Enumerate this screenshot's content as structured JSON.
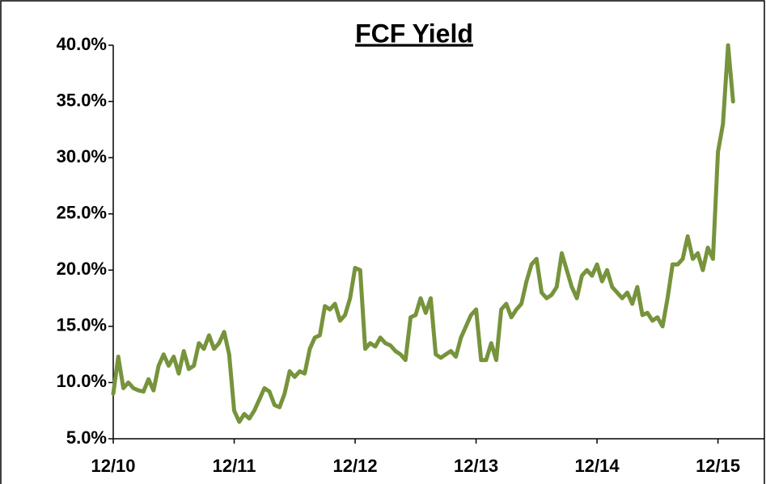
{
  "chart_data": {
    "type": "line",
    "title": "FCF Yield",
    "categories": [
      "12/10",
      null,
      null,
      null,
      null,
      null,
      null,
      null,
      null,
      null,
      null,
      null,
      null,
      null,
      null,
      null,
      null,
      null,
      null,
      null,
      null,
      null,
      null,
      null,
      "12/11",
      null,
      null,
      null,
      null,
      null,
      null,
      null,
      null,
      null,
      null,
      null,
      null,
      null,
      null,
      null,
      null,
      null,
      null,
      null,
      null,
      null,
      null,
      null,
      "12/12",
      null,
      null,
      null,
      null,
      null,
      null,
      null,
      null,
      null,
      null,
      null,
      null,
      null,
      null,
      null,
      null,
      null,
      null,
      null,
      null,
      null,
      null,
      null,
      "12/13",
      null,
      null,
      null,
      null,
      null,
      null,
      null,
      null,
      null,
      null,
      null,
      null,
      null,
      null,
      null,
      null,
      null,
      null,
      null,
      null,
      null,
      null,
      null,
      "12/14",
      null,
      null,
      null,
      null,
      null,
      null,
      null,
      null,
      null,
      null,
      null,
      null,
      null,
      null,
      null,
      null,
      null,
      null,
      null,
      null,
      null,
      null,
      null,
      "12/15",
      null,
      null,
      null
    ],
    "values": [
      9,
      12.3,
      9.5,
      10,
      9.5,
      9.3,
      9.2,
      10.3,
      9.3,
      11.5,
      12.5,
      11.5,
      12.3,
      10.8,
      12.8,
      11.2,
      11.5,
      13.5,
      13,
      14.2,
      13,
      13.5,
      14.5,
      12.5,
      7.5,
      6.5,
      7.2,
      6.8,
      7.5,
      8.5,
      9.5,
      9.2,
      8,
      7.8,
      9,
      11,
      10.5,
      11,
      10.8,
      13,
      14,
      14.2,
      16.8,
      16.5,
      17,
      15.5,
      16,
      17.5,
      20.2,
      20,
      13,
      13.5,
      13.2,
      14,
      13.5,
      13.3,
      12.8,
      12.5,
      12,
      15.8,
      16,
      17.5,
      16.2,
      17.5,
      12.5,
      12.2,
      12.5,
      12.8,
      12.3,
      14,
      15,
      16,
      16.5,
      12,
      12,
      13.5,
      12,
      16.5,
      17,
      15.8,
      16.5,
      17,
      19,
      20.5,
      21,
      18,
      17.5,
      17.8,
      18.5,
      21.5,
      20,
      18.5,
      17.5,
      19.5,
      20,
      19.5,
      20.5,
      19,
      20,
      18.5,
      18,
      17.5,
      18,
      17,
      18.5,
      16,
      16.2,
      15.5,
      15.8,
      15,
      17.5,
      20.5,
      20.5,
      21,
      23,
      21,
      21.5,
      20,
      22,
      21,
      30.5,
      33,
      40,
      35
    ],
    "color": "#77933c",
    "ylim": [
      5,
      40
    ],
    "yticks": [
      {
        "value": 5,
        "label": "5.0%"
      },
      {
        "value": 10,
        "label": "10.0%"
      },
      {
        "value": 15,
        "label": "15.0%"
      },
      {
        "value": 20,
        "label": "20.0%"
      },
      {
        "value": 25,
        "label": "25.0%"
      },
      {
        "value": 30,
        "label": "30.0%"
      },
      {
        "value": 35,
        "label": "35.0%"
      },
      {
        "value": 40,
        "label": "40.0%"
      }
    ],
    "grid": false
  }
}
